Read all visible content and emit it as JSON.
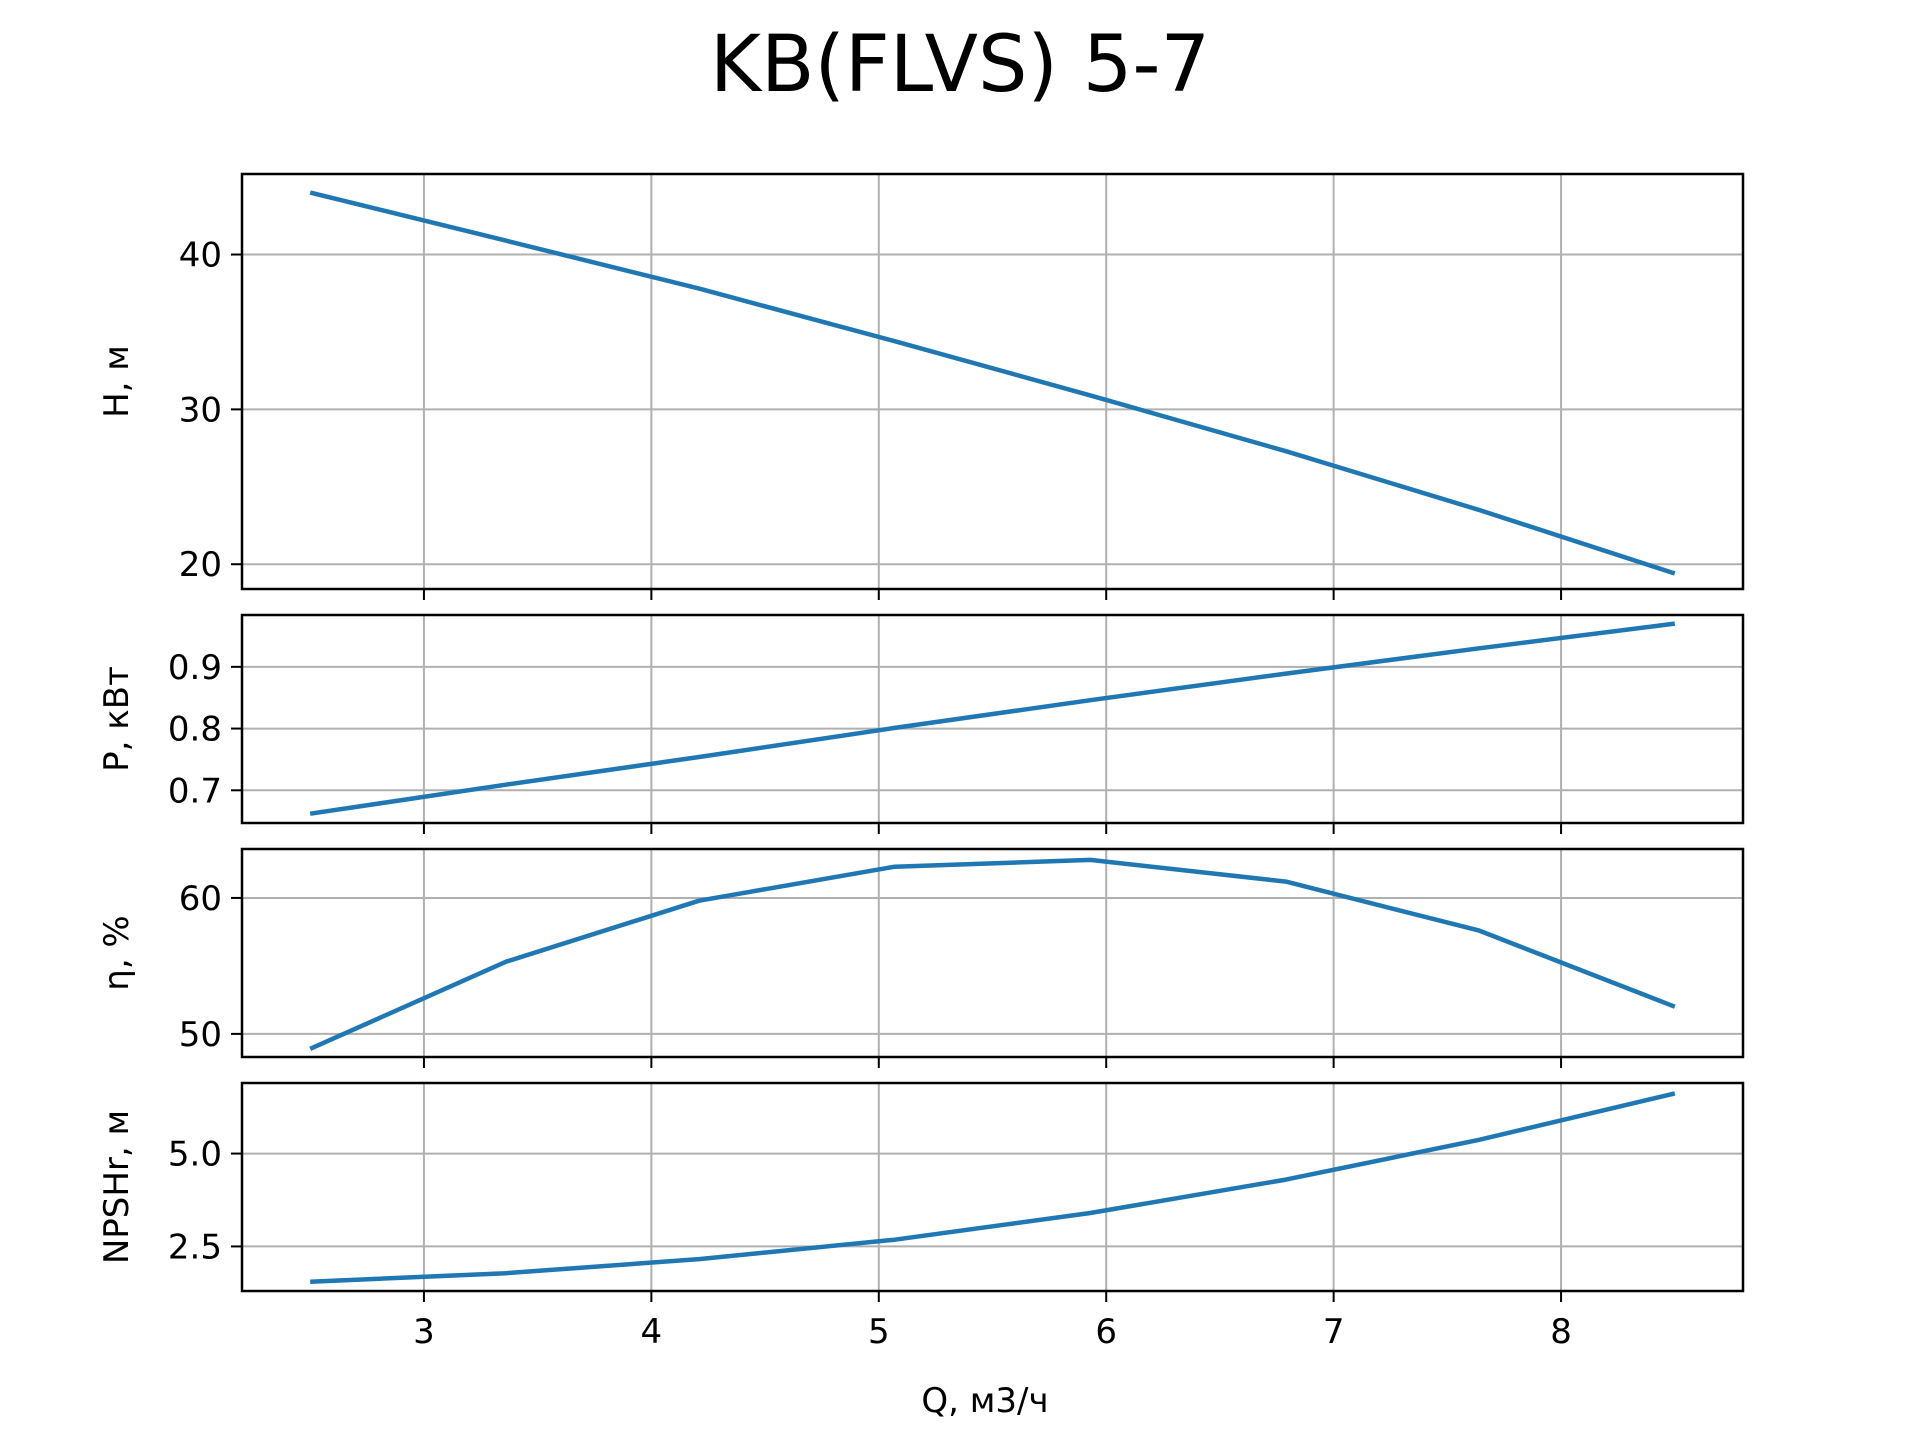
{
  "chart_data": {
    "type": "line",
    "title": "KB(FLVS) 5-7",
    "xlabel": "Q, м3/ч",
    "xlim": [
      2.2,
      8.8
    ],
    "xticks": [
      3,
      4,
      5,
      6,
      7,
      8
    ],
    "grid": true,
    "line_color": "#1f77b4",
    "panels": [
      {
        "ylabel": "H, м",
        "ylim": [
          18.4,
          45.2
        ],
        "yticks": [
          20,
          30,
          40
        ],
        "ytick_labels": [
          "20",
          "30",
          "40"
        ],
        "series": [
          {
            "x": [
              2.5,
              3.36,
              4.21,
              5.07,
              5.93,
              6.79,
              7.64,
              8.5
            ],
            "y": [
              44.0,
              40.9,
              37.8,
              34.4,
              30.9,
              27.3,
              23.5,
              19.4
            ]
          }
        ]
      },
      {
        "ylabel": "P, кВт",
        "ylim": [
          0.647,
          0.984
        ],
        "yticks": [
          0.7,
          0.8,
          0.9
        ],
        "ytick_labels": [
          "0.7",
          "0.8",
          "0.9"
        ],
        "series": [
          {
            "x": [
              2.5,
              3.36,
              4.21,
              5.07,
              5.93,
              6.79,
              7.64,
              8.5
            ],
            "y": [
              0.662,
              0.709,
              0.754,
              0.801,
              0.846,
              0.889,
              0.93,
              0.97
            ]
          }
        ]
      },
      {
        "ylabel": "η, %",
        "ylim": [
          48.3,
          63.6
        ],
        "yticks": [
          50,
          60
        ],
        "ytick_labels": [
          "50",
          "60"
        ],
        "series": [
          {
            "x": [
              2.5,
              3.36,
              4.21,
              5.07,
              5.93,
              6.79,
              7.64,
              8.5
            ],
            "y": [
              48.9,
              55.3,
              59.8,
              62.3,
              62.8,
              61.2,
              57.6,
              52.0
            ]
          }
        ]
      },
      {
        "ylabel": "NPSHr, м",
        "ylim": [
          1.3,
          6.9
        ],
        "yticks": [
          2.5,
          5.0
        ],
        "ytick_labels": [
          "2.5",
          "5.0"
        ],
        "series": [
          {
            "x": [
              2.5,
              3.36,
              4.21,
              5.07,
              5.93,
              6.79,
              7.64,
              8.5
            ],
            "y": [
              1.55,
              1.78,
              2.16,
              2.68,
              3.4,
              4.3,
              5.37,
              6.62
            ]
          }
        ]
      }
    ]
  }
}
